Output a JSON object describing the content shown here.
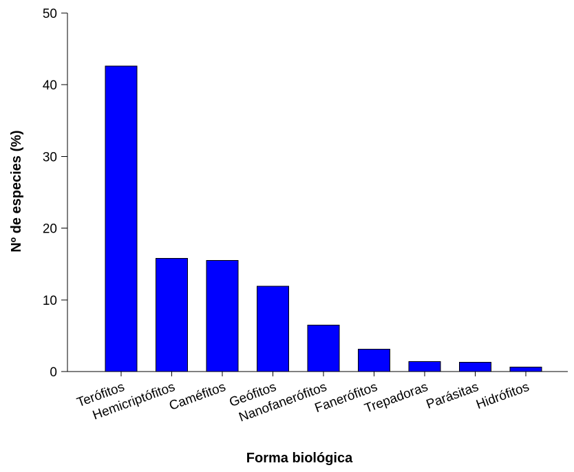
{
  "chart_data": {
    "type": "bar",
    "title": "",
    "xlabel": "Forma biológica",
    "ylabel": "Nº de especies (%)",
    "categories": [
      "Terófitos",
      "Hemicriptófitos",
      "Caméfitos",
      "Geófitos",
      "Nanofanerófitos",
      "Fanerófitos",
      "Trepadoras",
      "Parásitas",
      "Hidrófitos"
    ],
    "values": [
      42.6,
      15.8,
      15.5,
      11.9,
      6.5,
      3.1,
      1.4,
      1.3,
      0.6
    ],
    "ylim": [
      0,
      50
    ],
    "yticks": [
      0,
      10,
      20,
      30,
      40,
      50
    ],
    "grid": false,
    "legend": "none",
    "bar_color": "#0000ff"
  }
}
